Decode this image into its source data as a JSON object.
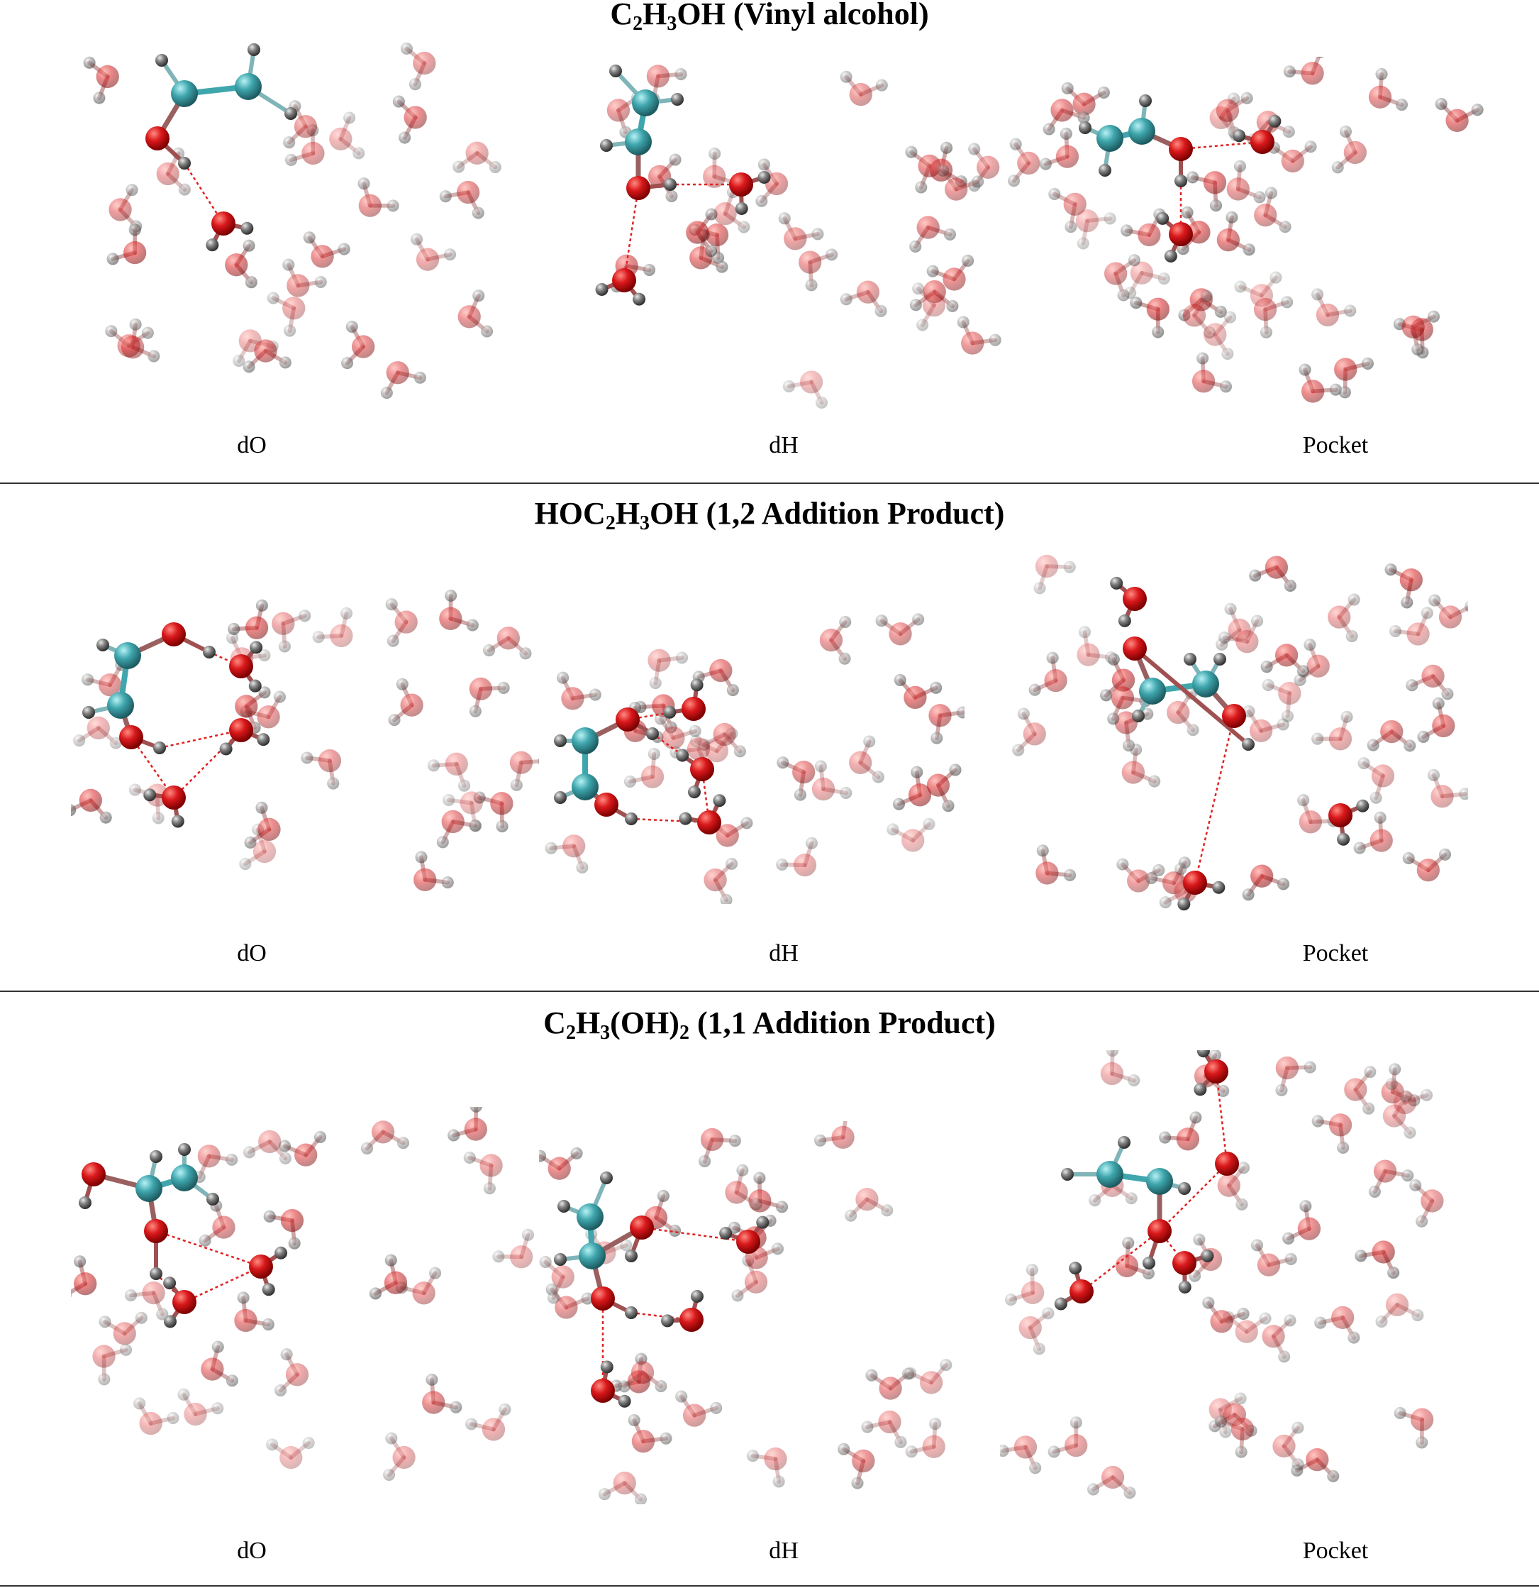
{
  "sections": [
    {
      "title_parts": [
        {
          "text": "C"
        },
        {
          "text": "2",
          "sub": true
        },
        {
          "text": "H"
        },
        {
          "text": "3",
          "sub": true
        },
        {
          "text": "OH (Vinyl alcohol)"
        }
      ],
      "panels": [
        "dO",
        "dH",
        "Pocket"
      ]
    },
    {
      "title_parts": [
        {
          "text": "HOC"
        },
        {
          "text": "2",
          "sub": true
        },
        {
          "text": "H"
        },
        {
          "text": "3",
          "sub": true
        },
        {
          "text": "OH (1,2 Addition Product)"
        }
      ],
      "panels": [
        "dO",
        "dH",
        "Pocket"
      ]
    },
    {
      "title_parts": [
        {
          "text": "C"
        },
        {
          "text": "2",
          "sub": true
        },
        {
          "text": "H"
        },
        {
          "text": "3",
          "sub": true
        },
        {
          "text": "(OH)"
        },
        {
          "text": "2",
          "sub": true
        },
        {
          "text": " (1,1 Addition Product)"
        }
      ],
      "panels": [
        "dO",
        "dH",
        "Pocket"
      ]
    }
  ],
  "colors": {
    "carbon": "#3fa6ad",
    "oxygen": "#d9181b",
    "hydrogen": "#808080",
    "hbond": "#e02020",
    "rule": "#333333"
  }
}
